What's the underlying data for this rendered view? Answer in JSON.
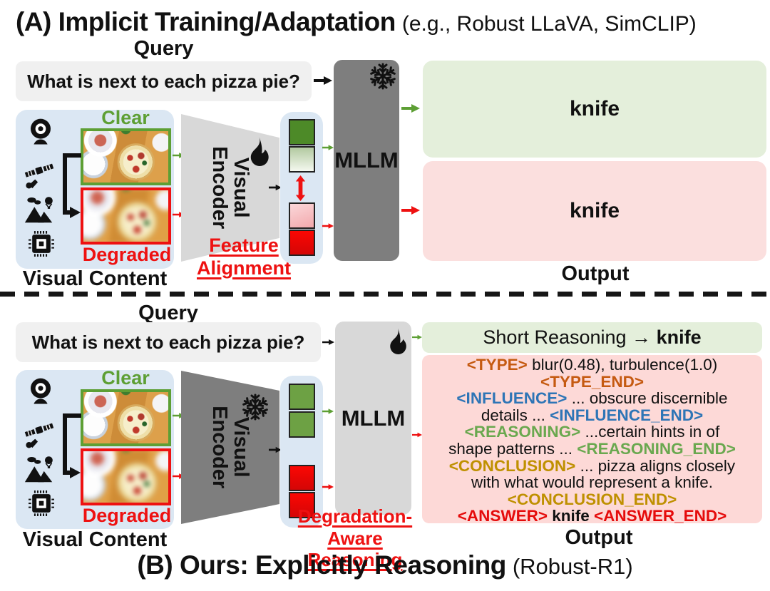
{
  "colors": {
    "accent-green": "#5d9f34",
    "accent-red": "#ee1111",
    "tag-type": "#c55a11",
    "tag-influence": "#2e75b6",
    "tag-reasoning": "#6aa84f",
    "tag-conclusion": "#bf9000",
    "tag-answer": "#e50b0b",
    "box-green": "#e4efdb",
    "box-pink": "#fbdfde",
    "box-pink-deep": "#fdd9d7",
    "panel-blue": "#dbe7f3",
    "gray-dark": "#7e7e7e",
    "gray-light": "#d8d8d8",
    "query-gray": "#f0f0f0"
  },
  "icons": {
    "camera": "webcam-icon",
    "satellite": "satellite-icon",
    "scene": "landscape-icon",
    "chip": "chip-icon",
    "trainable": "flame-icon",
    "frozen": "snowflake-icon"
  },
  "section_a": {
    "title": "(A) Implicit Training/Adaptation",
    "title_note": "(e.g., Robust LLaVA, SimCLIP)",
    "query_label": "Query",
    "query_text": "What is next to each pizza pie?",
    "visual": {
      "clear": "Clear",
      "degraded": "Degraded",
      "caption": "Visual Content"
    },
    "encoder_line1": "Visual",
    "encoder_line2": "Encoder",
    "feature_alignment_line1": "Feature",
    "feature_alignment_line2": "Alignment",
    "mllm": "MLLM",
    "output_clear": "knife",
    "output_degraded": "knife",
    "output_caption": "Output"
  },
  "section_b": {
    "title": "(B) Ours: Explicitly Reasoning",
    "title_note": "(Robust-R1)",
    "query_label": "Query",
    "query_text": "What is next to each pizza pie?",
    "visual": {
      "clear": "Clear",
      "degraded": "Degraded",
      "caption": "Visual Content"
    },
    "encoder_line1": "Visual",
    "encoder_line2": "Encoder",
    "degradation_line1": "Degradation-",
    "degradation_line2": "Aware Reasoning",
    "mllm": "MLLM",
    "short_reasoning_prefix": "Short Reasoning ",
    "short_reasoning_arrow": "→ ",
    "short_reasoning_answer": "knife",
    "reasoning_lines": [
      [
        {
          "t": "<TYPE>",
          "c": "type"
        },
        {
          "t": " blur(0.48), turbulence(1.0)"
        }
      ],
      [
        {
          "t": "<TYPE_END>",
          "c": "type"
        }
      ],
      [
        {
          "t": "<INFLUENCE>",
          "c": "influence"
        },
        {
          "t": " ... obscure discernible"
        }
      ],
      [
        {
          "t": "details ... "
        },
        {
          "t": "<INFLUENCE_END>",
          "c": "influence"
        }
      ],
      [
        {
          "t": "<REASONING>",
          "c": "reasoning"
        },
        {
          "t": " ...certain hints in of"
        }
      ],
      [
        {
          "t": "shape patterns ... "
        },
        {
          "t": "<REASONING_END>",
          "c": "reasoning"
        }
      ],
      [
        {
          "t": "<CONCLUSION>",
          "c": "conclusion"
        },
        {
          "t": " ... pizza aligns closely"
        }
      ],
      [
        {
          "t": "with what would represent a knife."
        }
      ],
      [
        {
          "t": "<CONCLUSION_END>",
          "c": "conclusion"
        }
      ],
      [
        {
          "t": "<ANSWER>",
          "c": "answer"
        },
        {
          "t": " knife ",
          "b": true
        },
        {
          "t": "<ANSWER_END>",
          "c": "answer"
        }
      ]
    ],
    "output_caption": "Output"
  }
}
